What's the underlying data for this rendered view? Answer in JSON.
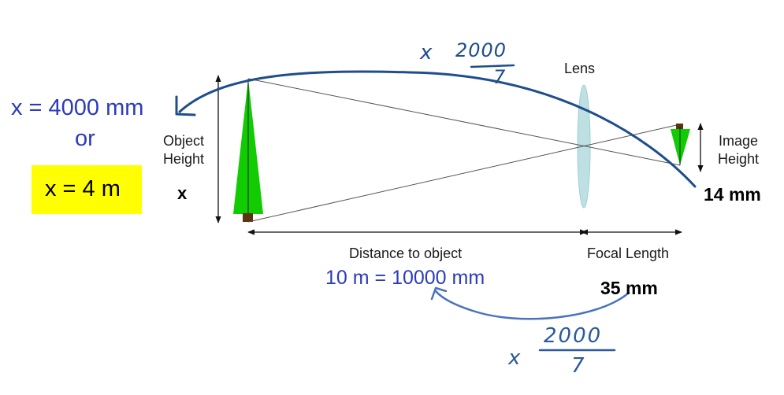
{
  "labels": {
    "lens": "Lens",
    "object_height_1": "Object",
    "object_height_2": "Height",
    "object_var": "x",
    "image_height_1": "Image",
    "image_height_2": "Height",
    "image_value": "14 mm",
    "distance_label": "Distance to object",
    "distance_value": "10 m = 10000 mm",
    "focal_label": "Focal Length",
    "focal_value": "35 mm"
  },
  "answer": {
    "line1": "x = 4000 mm",
    "line2": "or",
    "boxed": "x = 4 m",
    "highlight_color": "#ffff00"
  },
  "handwritten": {
    "top_times": "x",
    "top_num": "2000",
    "top_den": "7",
    "bottom_times": "x",
    "bottom_num": "2000",
    "bottom_den": "7"
  },
  "colors": {
    "tree_green": "#11cc00",
    "trunk_brown": "#5a3310",
    "lens_fill": "#bfe0e3",
    "pen_blue": "#1f4e8c",
    "arrow_blue": "#4a72c0",
    "answer_blue": "#2b3bbd"
  }
}
